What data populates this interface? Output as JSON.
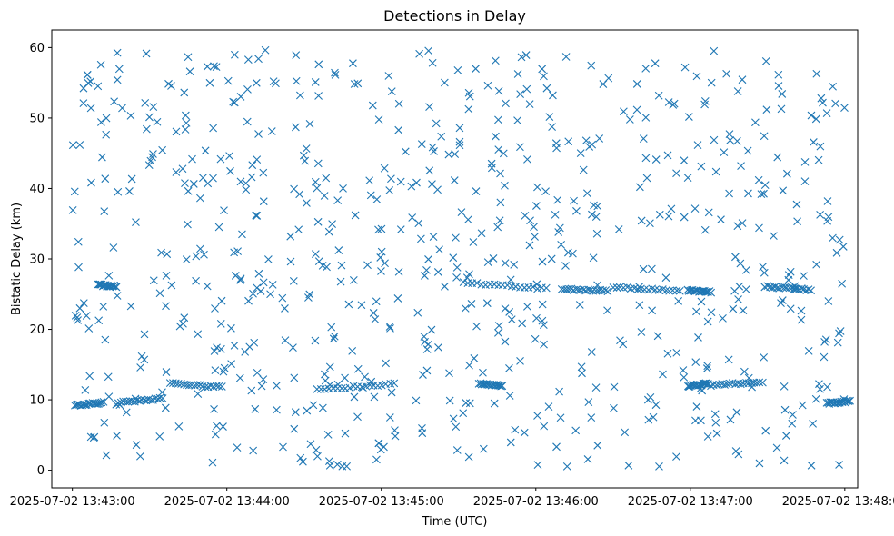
{
  "chart_data": {
    "type": "scatter",
    "title": "Detections in Delay",
    "xlabel": "Time (UTC)",
    "ylabel": "Bistatic Delay (km)",
    "marker": "x",
    "color": "#1f77b4",
    "grid": false,
    "legend": "none",
    "x_unit": "time",
    "xlim": [
      "2025-07-02 13:42:52",
      "2025-07-02 13:48:05"
    ],
    "ylim": [
      -2.5,
      62.5
    ],
    "x_ticks": [
      "2025-07-02 13:43:00",
      "2025-07-02 13:44:00",
      "2025-07-02 13:45:00",
      "2025-07-02 13:46:00",
      "2025-07-02 13:47:00",
      "2025-07-02 13:48:00"
    ],
    "y_ticks": [
      0,
      10,
      20,
      30,
      40,
      50,
      60
    ],
    "tracks": [
      {
        "start": "2025-07-02 13:43:01",
        "end": "2025-07-02 13:43:12",
        "y_start": 9.2,
        "y_end": 9.6
      },
      {
        "start": "2025-07-02 13:43:18",
        "end": "2025-07-02 13:43:35",
        "y_start": 9.6,
        "y_end": 10.2
      },
      {
        "start": "2025-07-02 13:43:10",
        "end": "2025-07-02 13:43:17",
        "y_start": 26.3,
        "y_end": 26.1
      },
      {
        "start": "2025-07-02 13:43:38",
        "end": "2025-07-02 13:43:58",
        "y_start": 12.3,
        "y_end": 11.8
      },
      {
        "start": "2025-07-02 13:44:35",
        "end": "2025-07-02 13:45:05",
        "y_start": 11.4,
        "y_end": 12.3
      },
      {
        "start": "2025-07-02 13:45:38",
        "end": "2025-07-02 13:45:47",
        "y_start": 12.3,
        "y_end": 12.0
      },
      {
        "start": "2025-07-02 13:45:32",
        "end": "2025-07-02 13:46:04",
        "y_start": 26.6,
        "y_end": 25.8
      },
      {
        "start": "2025-07-02 13:46:10",
        "end": "2025-07-02 13:46:28",
        "y_start": 25.7,
        "y_end": 25.5
      },
      {
        "start": "2025-07-02 13:46:30",
        "end": "2025-07-02 13:46:56",
        "y_start": 26.0,
        "y_end": 25.4
      },
      {
        "start": "2025-07-02 13:46:59",
        "end": "2025-07-02 13:47:08",
        "y_start": 25.5,
        "y_end": 25.3
      },
      {
        "start": "2025-07-02 13:46:59",
        "end": "2025-07-02 13:47:07",
        "y_start": 11.9,
        "y_end": 12.3
      },
      {
        "start": "2025-07-02 13:47:08",
        "end": "2025-07-02 13:47:28",
        "y_start": 12.1,
        "y_end": 12.5
      },
      {
        "start": "2025-07-02 13:47:29",
        "end": "2025-07-02 13:47:47",
        "y_start": 26.1,
        "y_end": 25.6
      },
      {
        "start": "2025-07-02 13:47:53",
        "end": "2025-07-02 13:48:02",
        "y_start": 9.5,
        "y_end": 9.8
      }
    ],
    "track_points_each": 20,
    "clutter_points": 720,
    "clutter_y_range": [
      0.5,
      60
    ]
  }
}
